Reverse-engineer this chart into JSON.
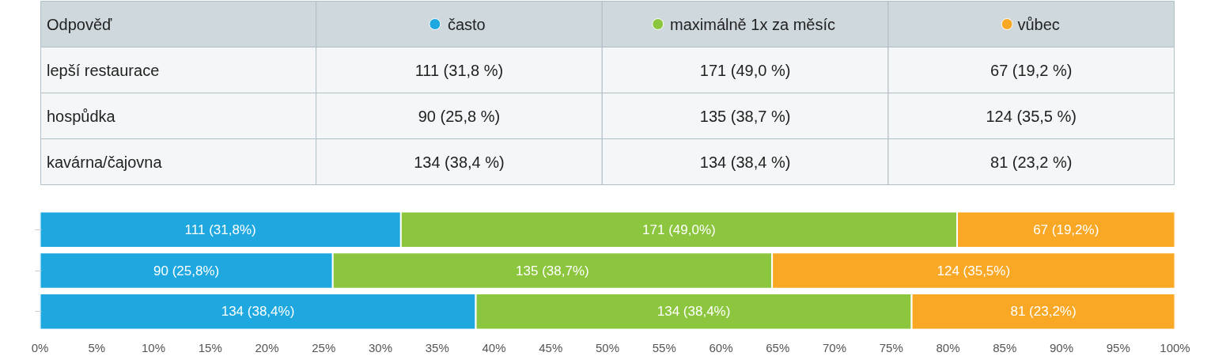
{
  "chart_data": [
    {
      "type": "other",
      "categories": [
        "Odpověď",
        "často",
        "maximálně 1x za měsíc",
        "vůbec"
      ],
      "colors": [
        null,
        "#1fa8e0",
        "#8cc63f",
        "#f9a825"
      ],
      "y_categories": [
        "lepší restaurace",
        "hospůdka",
        "kavárna/čajovna"
      ],
      "cell_labels": [
        [
          "111 (31,8 %)",
          "171 (49,0 %)",
          "67 (19,2 %)"
        ],
        [
          "90 (25,8 %)",
          "135 (38,7 %)",
          "124 (35,5 %)"
        ],
        [
          "134 (38,4 %)",
          "134 (38,4 %)",
          "81 (23,2 %)"
        ]
      ]
    },
    {
      "type": "bar",
      "orientation": "horizontal",
      "stacked": true,
      "categories": [
        null,
        null,
        null
      ],
      "tick_labels": "x",
      "xlim": [
        0,
        100
      ],
      "xticks": [
        {
          "value": 0,
          "label": "0%"
        },
        {
          "value": 5,
          "label": "5%"
        },
        {
          "value": 10,
          "label": "10%"
        },
        {
          "value": 15,
          "label": "15%"
        },
        {
          "value": 20,
          "label": "20%"
        },
        {
          "value": 25,
          "label": "25%"
        },
        {
          "value": 30,
          "label": "30%"
        },
        {
          "value": 35,
          "label": "35%"
        },
        {
          "value": 40,
          "label": "40%"
        },
        {
          "value": 45,
          "label": "45%"
        },
        {
          "value": 50,
          "label": "50%"
        },
        {
          "value": 55,
          "label": "55%"
        },
        {
          "value": 60,
          "label": "60%"
        },
        {
          "value": 65,
          "label": "65%"
        },
        {
          "value": 70,
          "label": "70%"
        },
        {
          "value": 75,
          "label": "75%"
        },
        {
          "value": 80,
          "label": "80%"
        },
        {
          "value": 85,
          "label": "85%"
        },
        {
          "value": 90,
          "label": "90%"
        },
        {
          "value": 95,
          "label": "95%"
        },
        {
          "value": 100,
          "label": "100%"
        }
      ],
      "series": [
        {
          "color": "#1fa8e0",
          "values": [
            31.8,
            25.8,
            38.4
          ],
          "value_labels": [
            "111 (31,8%)",
            "90 (25,8%)",
            "134 (38,4%)"
          ]
        },
        {
          "color": "#8cc63f",
          "values": [
            49.0,
            38.7,
            38.4
          ],
          "value_labels": [
            "171 (49,0%)",
            "135 (38,7%)",
            "134 (38,4%)"
          ]
        },
        {
          "color": "#f9a825",
          "values": [
            19.2,
            35.5,
            23.2
          ],
          "value_labels": [
            "67 (19,2%)",
            "124 (35,5%)",
            "81 (23,2%)"
          ]
        }
      ]
    }
  ]
}
